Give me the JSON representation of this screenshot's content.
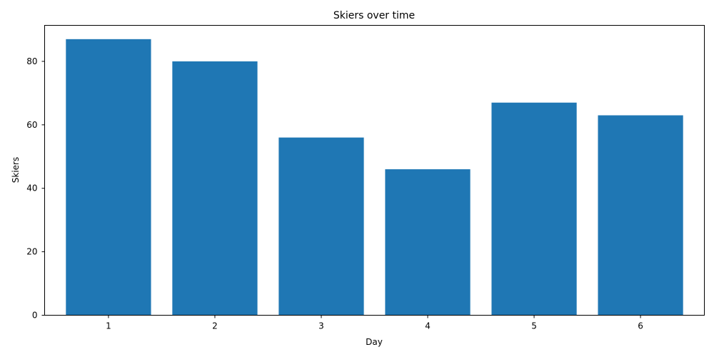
{
  "chart_data": {
    "type": "bar",
    "title": "Skiers over time",
    "xlabel": "Day",
    "ylabel": "Skiers",
    "categories": [
      "1",
      "2",
      "3",
      "4",
      "5",
      "6"
    ],
    "values": [
      87,
      80,
      56,
      46,
      67,
      63
    ],
    "ylim": [
      0,
      91.35
    ],
    "yticks": [
      0,
      20,
      40,
      60,
      80
    ],
    "bar_color": "#1f77b4",
    "grid": false,
    "legend": "none"
  }
}
